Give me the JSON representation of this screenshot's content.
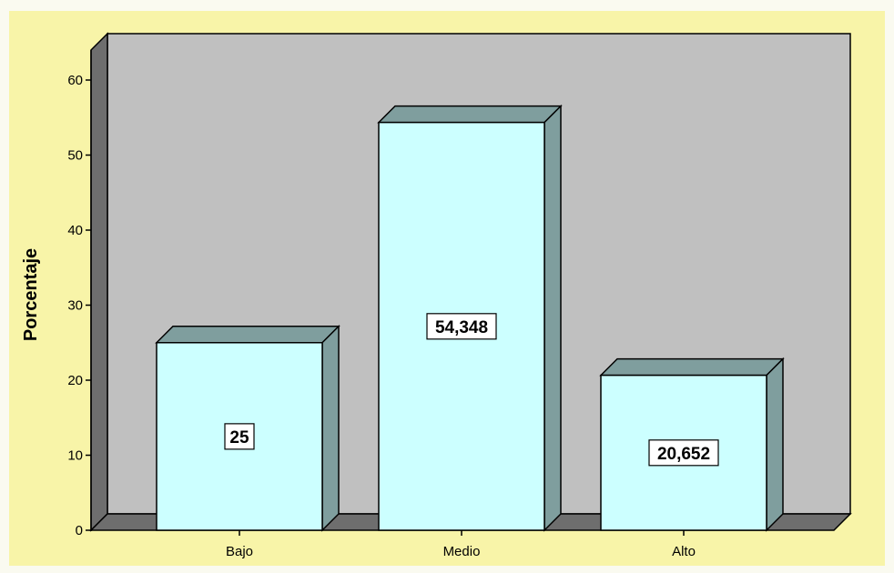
{
  "chart_data": {
    "type": "bar",
    "title": "",
    "xlabel": "",
    "ylabel": "Porcentaje",
    "categories": [
      "Bajo",
      "Medio",
      "Alto"
    ],
    "values": [
      25,
      54.348,
      20.652
    ],
    "value_labels": [
      "25",
      "54,348",
      "20,652"
    ],
    "yticks": [
      0,
      10,
      20,
      30,
      40,
      50,
      60
    ],
    "ylim": [
      0,
      64
    ],
    "grid": false,
    "legend": "none",
    "style": "3d"
  },
  "colors": {
    "page_background": "#fafaf0",
    "outer_background": "#f8f4a8",
    "plot_wall": "#c0c0c0",
    "side_wall": "#6e6e6e",
    "floor": "#6e6e6e",
    "bar_front": "#ccffff",
    "bar_top": "#7f9e9e",
    "bar_side": "#7f9e9e",
    "outline": "#000000",
    "label_box": "#ffffff"
  }
}
